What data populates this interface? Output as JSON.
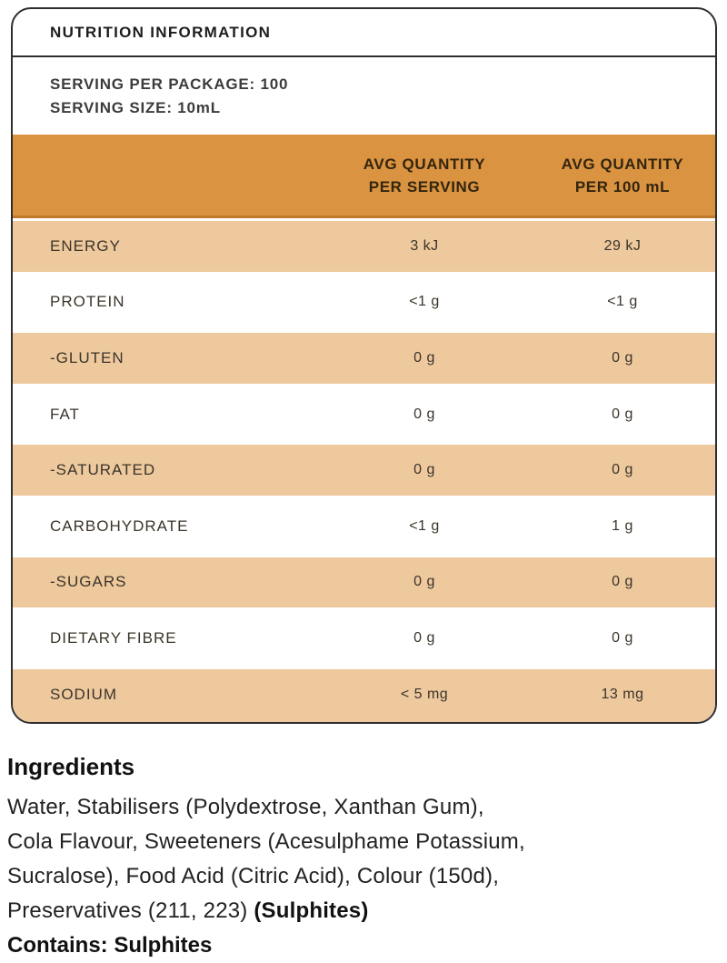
{
  "panel": {
    "title": "NUTRITION INFORMATION",
    "serving_per_package": "SERVING PER PACKAGE: 100",
    "serving_size": "SERVING SIZE: 10mL"
  },
  "table": {
    "headers": [
      {
        "line1": "AVG QUANTITY",
        "line2": "PER SERVING"
      },
      {
        "line1": "AVG QUANTITY",
        "line2": "PER 100 mL"
      }
    ],
    "rows": [
      {
        "name": "ENERGY",
        "per_serving": "3 kJ",
        "per_100ml": "29 kJ"
      },
      {
        "name": "PROTEIN",
        "per_serving": "<1 g",
        "per_100ml": "<1 g"
      },
      {
        "name": "-GLUTEN",
        "per_serving": "0 g",
        "per_100ml": "0 g"
      },
      {
        "name": "FAT",
        "per_serving": "0 g",
        "per_100ml": "0 g"
      },
      {
        "name": "-SATURATED",
        "per_serving": "0 g",
        "per_100ml": "0 g"
      },
      {
        "name": "CARBOHYDRATE",
        "per_serving": "<1 g",
        "per_100ml": "1 g"
      },
      {
        "name": "-SUGARS",
        "per_serving": "0 g",
        "per_100ml": "0 g"
      },
      {
        "name": "DIETARY FIBRE",
        "per_serving": "0 g",
        "per_100ml": "0 g"
      },
      {
        "name": "SODIUM",
        "per_serving": "< 5 mg",
        "per_100ml": "13 mg"
      }
    ]
  },
  "ingredients": {
    "heading": "Ingredients",
    "lines": [
      "Water, Stabilisers (Polydextrose, Xanthan Gum),",
      "Cola Flavour, Sweeteners (Acesulphame Potassium,",
      "Sucralose), Food Acid (Citric Acid), Colour (150d),"
    ],
    "last_line_regular": "Preservatives (211, 223) ",
    "last_line_bold": "(Sulphites)",
    "contains": "Contains: Sulphites"
  },
  "colors": {
    "header_orange": "#DA9340",
    "header_border": "#C1792C",
    "row_tan": "#EEC99E",
    "row_white": "#FFFFFF",
    "card_border": "#2E2E2E",
    "header_text": "#33250F",
    "row_text": "#3B342A"
  }
}
